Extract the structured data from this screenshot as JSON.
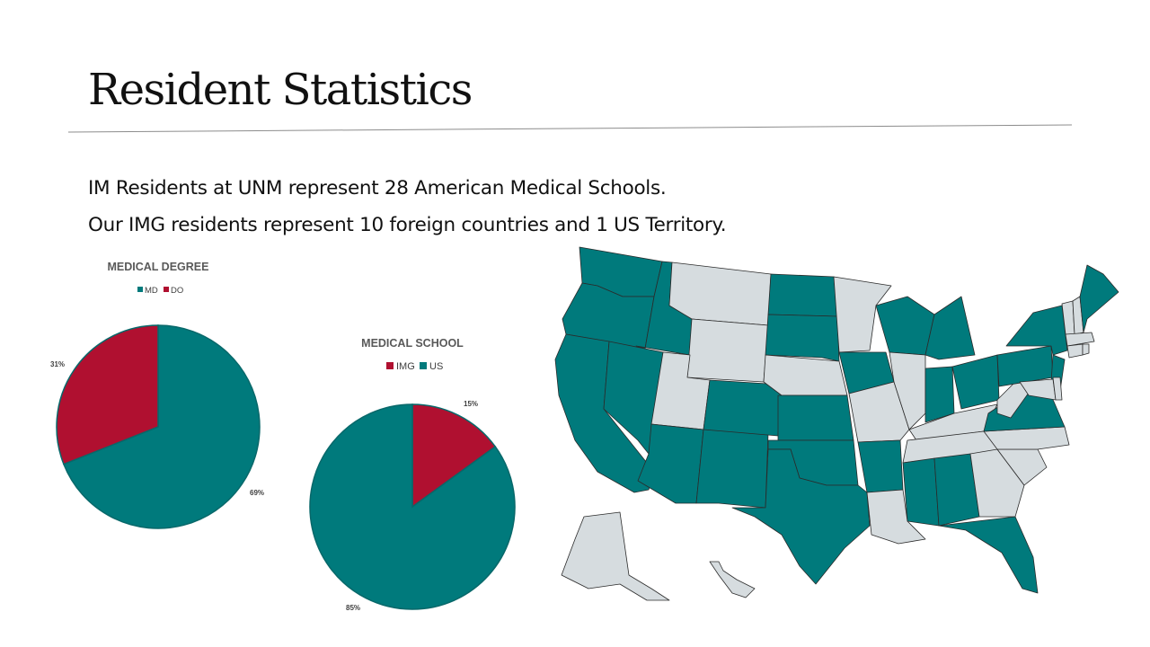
{
  "slide": {
    "title": "Resident Statistics",
    "line1": "IM Residents at UNM represent 28 American Medical Schools.",
    "line2": "Our IMG residents represent 10 foreign countries and 1 US Territory."
  },
  "colors": {
    "teal": "#007A7C",
    "crimson": "#B01030",
    "map_gray": "#D6DCDF"
  },
  "chart_data": [
    {
      "type": "pie",
      "title": "MEDICAL DEGREE",
      "categories": [
        "MD",
        "DO"
      ],
      "values": [
        69,
        31
      ],
      "labels": [
        "69%",
        "31%"
      ],
      "colors": [
        "#007A7C",
        "#B01030"
      ],
      "legend": "top"
    },
    {
      "type": "pie",
      "title": "MEDICAL SCHOOL",
      "categories": [
        "IMG",
        "US"
      ],
      "values": [
        15,
        85
      ],
      "labels": [
        "15%",
        "85%"
      ],
      "colors": [
        "#B01030",
        "#007A7C"
      ],
      "legend": "top"
    }
  ],
  "map": {
    "highlighted_states": [
      "WA",
      "OR",
      "CA",
      "NV",
      "ID",
      "AZ",
      "NM",
      "CO",
      "TX",
      "OK",
      "KS",
      "ND",
      "SD",
      "IA",
      "AR",
      "WI",
      "MI",
      "IN",
      "OH",
      "PA",
      "NY",
      "NJ",
      "VA",
      "MS",
      "AL",
      "FL",
      "ME"
    ],
    "gray_states": [
      "MT",
      "WY",
      "UT",
      "NE",
      "MN",
      "MO",
      "IL",
      "LA",
      "KY",
      "TN",
      "NC",
      "SC",
      "GA",
      "WV",
      "VT",
      "NH",
      "MA",
      "CT",
      "RI",
      "MD",
      "DE",
      "AK",
      "HI"
    ]
  }
}
